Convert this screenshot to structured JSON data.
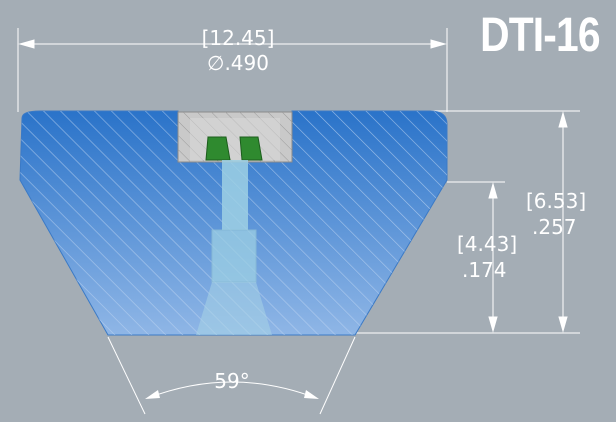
{
  "title": "DTI-16",
  "dimensions": {
    "top_width_mm": "[12.45]",
    "top_width_in": "∅.490",
    "overall_height_mm": "[6.53]",
    "overall_height_in": ".257",
    "inner_height_mm": "[4.43]",
    "inner_height_in": ".174",
    "angle": "59°"
  },
  "colors": {
    "background": "#a4adb5",
    "body_fill": "#5b8fd0",
    "body_dark": "#2a73c9",
    "hatch": "#8fb6e6",
    "channel": "#9dd0e4",
    "insert": "#c9c9c9",
    "seal": "#2f8a2f",
    "dimension_line": "#ffffff"
  }
}
